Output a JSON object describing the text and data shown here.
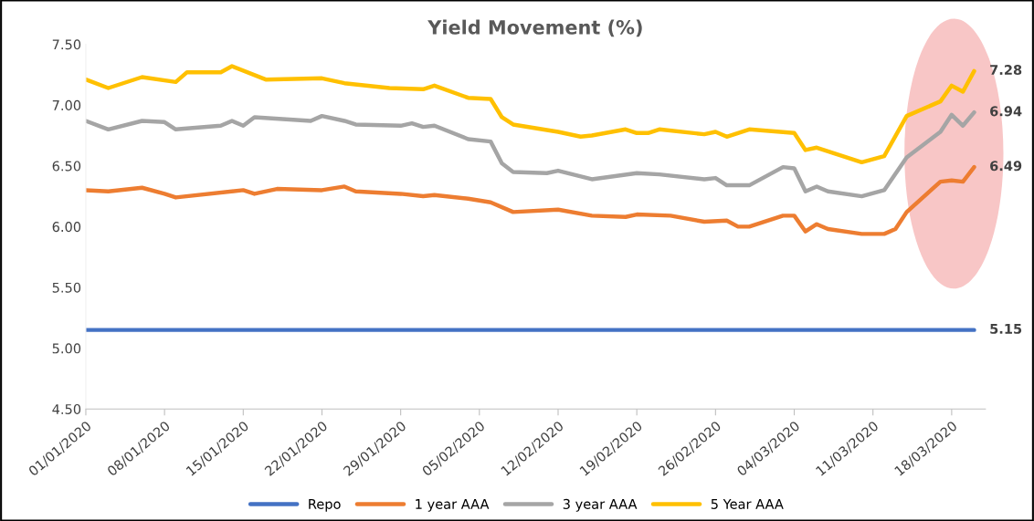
{
  "chart_data": {
    "type": "line",
    "title": "Yield Movement (%)",
    "series": [
      {
        "name": "Repo",
        "color": "#4472c4",
        "x": [
          "2020-01-01",
          "2020-03-20"
        ],
        "values": [
          5.15,
          5.15
        ]
      },
      {
        "name": "1 year AAA",
        "color": "#ed7d31",
        "x": [
          "2020-01-01",
          "2020-01-03",
          "2020-01-06",
          "2020-01-08",
          "2020-01-09",
          "2020-01-15",
          "2020-01-16",
          "2020-01-18",
          "2020-01-22",
          "2020-01-24",
          "2020-01-25",
          "2020-01-29",
          "2020-01-31",
          "2020-02-01",
          "2020-02-04",
          "2020-02-06",
          "2020-02-08",
          "2020-02-12",
          "2020-02-15",
          "2020-02-18",
          "2020-02-19",
          "2020-02-22",
          "2020-02-25",
          "2020-02-27",
          "2020-02-28",
          "2020-02-29",
          "2020-03-03",
          "2020-03-04",
          "2020-03-05",
          "2020-03-06",
          "2020-03-07",
          "2020-03-10",
          "2020-03-12",
          "2020-03-13",
          "2020-03-14",
          "2020-03-17",
          "2020-03-18",
          "2020-03-19",
          "2020-03-20"
        ],
        "values": [
          6.3,
          6.29,
          6.32,
          6.27,
          6.24,
          6.3,
          6.27,
          6.31,
          6.3,
          6.33,
          6.29,
          6.27,
          6.25,
          6.26,
          6.23,
          6.2,
          6.12,
          6.14,
          6.09,
          6.08,
          6.1,
          6.09,
          6.04,
          6.05,
          6.0,
          6.0,
          6.09,
          6.09,
          5.96,
          6.02,
          5.98,
          5.94,
          5.94,
          5.98,
          6.12,
          6.37,
          6.38,
          6.37,
          6.49
        ]
      },
      {
        "name": "3 year AAA",
        "color": "#a5a5a5",
        "x": [
          "2020-01-01",
          "2020-01-03",
          "2020-01-06",
          "2020-01-08",
          "2020-01-09",
          "2020-01-13",
          "2020-01-14",
          "2020-01-15",
          "2020-01-16",
          "2020-01-21",
          "2020-01-22",
          "2020-01-24",
          "2020-01-25",
          "2020-01-29",
          "2020-01-30",
          "2020-01-31",
          "2020-02-01",
          "2020-02-04",
          "2020-02-06",
          "2020-02-07",
          "2020-02-08",
          "2020-02-11",
          "2020-02-12",
          "2020-02-15",
          "2020-02-19",
          "2020-02-21",
          "2020-02-25",
          "2020-02-26",
          "2020-02-27",
          "2020-02-29",
          "2020-03-03",
          "2020-03-04",
          "2020-03-05",
          "2020-03-06",
          "2020-03-07",
          "2020-03-10",
          "2020-03-12",
          "2020-03-14",
          "2020-03-17",
          "2020-03-18",
          "2020-03-19",
          "2020-03-20"
        ],
        "values": [
          6.87,
          6.8,
          6.87,
          6.86,
          6.8,
          6.83,
          6.87,
          6.83,
          6.9,
          6.87,
          6.91,
          6.87,
          6.84,
          6.83,
          6.85,
          6.82,
          6.83,
          6.72,
          6.7,
          6.52,
          6.45,
          6.44,
          6.46,
          6.39,
          6.44,
          6.43,
          6.39,
          6.4,
          6.34,
          6.34,
          6.49,
          6.48,
          6.29,
          6.33,
          6.29,
          6.25,
          6.3,
          6.57,
          6.78,
          6.92,
          6.83,
          6.94
        ]
      },
      {
        "name": "5 Year AAA",
        "color": "#ffc000",
        "x": [
          "2020-01-01",
          "2020-01-03",
          "2020-01-06",
          "2020-01-09",
          "2020-01-10",
          "2020-01-13",
          "2020-01-14",
          "2020-01-17",
          "2020-01-22",
          "2020-01-24",
          "2020-01-28",
          "2020-01-31",
          "2020-02-01",
          "2020-02-04",
          "2020-02-06",
          "2020-02-07",
          "2020-02-08",
          "2020-02-12",
          "2020-02-14",
          "2020-02-15",
          "2020-02-18",
          "2020-02-19",
          "2020-02-20",
          "2020-02-21",
          "2020-02-25",
          "2020-02-26",
          "2020-02-27",
          "2020-02-29",
          "2020-03-04",
          "2020-03-05",
          "2020-03-06",
          "2020-03-10",
          "2020-03-12",
          "2020-03-14",
          "2020-03-17",
          "2020-03-18",
          "2020-03-19",
          "2020-03-20"
        ],
        "values": [
          7.21,
          7.14,
          7.23,
          7.19,
          7.27,
          7.27,
          7.32,
          7.21,
          7.22,
          7.18,
          7.14,
          7.13,
          7.16,
          7.06,
          7.05,
          6.9,
          6.84,
          6.78,
          6.74,
          6.75,
          6.8,
          6.77,
          6.77,
          6.8,
          6.76,
          6.78,
          6.74,
          6.8,
          6.77,
          6.63,
          6.65,
          6.53,
          6.58,
          6.91,
          7.03,
          7.16,
          7.11,
          7.28
        ]
      }
    ],
    "annotations": [
      {
        "text": "7.28",
        "x": "2020-03-20",
        "y": 7.28
      },
      {
        "text": "6.94",
        "x": "2020-03-20",
        "y": 6.94
      },
      {
        "text": "6.49",
        "x": "2020-03-20",
        "y": 6.49
      },
      {
        "text": "5.15",
        "x": "2020-03-20",
        "y": 5.15
      }
    ],
    "xlim": [
      "2020-01-01",
      "2020-03-21"
    ],
    "xticks": [
      {
        "value": "2020-01-01",
        "label": "01/01/2020"
      },
      {
        "value": "2020-01-08",
        "label": "08/01/2020"
      },
      {
        "value": "2020-01-15",
        "label": "15/01/2020"
      },
      {
        "value": "2020-01-22",
        "label": "22/01/2020"
      },
      {
        "value": "2020-01-29",
        "label": "29/01/2020"
      },
      {
        "value": "2020-02-05",
        "label": "05/02/2020"
      },
      {
        "value": "2020-02-12",
        "label": "12/02/2020"
      },
      {
        "value": "2020-02-19",
        "label": "19/02/2020"
      },
      {
        "value": "2020-02-26",
        "label": "26/02/2020"
      },
      {
        "value": "2020-03-04",
        "label": "04/03/2020"
      },
      {
        "value": "2020-03-11",
        "label": "11/03/2020"
      },
      {
        "value": "2020-03-18",
        "label": "18/03/2020"
      }
    ],
    "ylim": [
      4.5,
      7.5
    ],
    "yticks": [
      {
        "value": 4.5,
        "label": "4.50"
      },
      {
        "value": 5.0,
        "label": "5.00"
      },
      {
        "value": 5.5,
        "label": "5.50"
      },
      {
        "value": 6.0,
        "label": "6.00"
      },
      {
        "value": 6.5,
        "label": "6.50"
      },
      {
        "value": 7.0,
        "label": "7.00"
      },
      {
        "value": 7.5,
        "label": "7.50"
      }
    ],
    "grid": false,
    "legend": "bottom",
    "marker": "none",
    "line_style": "solid"
  }
}
